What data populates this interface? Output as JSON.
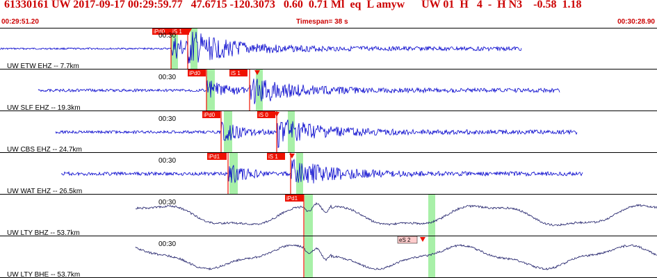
{
  "header": {
    "title": "61330161 UW 2017-09-17 00:29:59.77   47.6715 -120.3073   0.60  0.71 Ml  eq  L amyw      UW 01  H   4  -  H N3    -0.58  1.18",
    "start_time": "00:29:51.20",
    "timespan": "Timespan=  38 s",
    "end_time": "00:30:28.90"
  },
  "colors": {
    "header_text": "#cc0000",
    "trace_short_period": "#0000cc",
    "trace_broadband": "#1a1a66",
    "pick_flag": "#ee1100",
    "pick_flag_emergent": "#ffcccc",
    "pick_marker": "#ee1100",
    "window_band": "#a8f0a8",
    "separator": "#000000"
  },
  "traces": [
    {
      "id": "etw",
      "label": "UW ETW EHZ -- 7.7km",
      "tick_label": "00:30",
      "type": "short_period",
      "picks": [
        {
          "label": "iPd0",
          "style": "impulsive"
        },
        {
          "label": "iS 1",
          "style": "impulsive"
        }
      ]
    },
    {
      "id": "slf",
      "label": "UW SLF EHZ -- 19.3km",
      "tick_label": "00:30",
      "type": "short_period",
      "picks": [
        {
          "label": "iPd0",
          "style": "impulsive"
        },
        {
          "label": "iS 1",
          "style": "impulsive"
        }
      ]
    },
    {
      "id": "cbs",
      "label": "UW CBS EHZ -- 24.7km",
      "tick_label": "00:30",
      "type": "short_period",
      "picks": [
        {
          "label": "iPd0",
          "style": "impulsive"
        },
        {
          "label": "iS 0",
          "style": "impulsive"
        }
      ]
    },
    {
      "id": "wat",
      "label": "UW WAT EHZ -- 26.5km",
      "tick_label": "00:30",
      "type": "short_period",
      "picks": [
        {
          "label": "iPd1",
          "style": "impulsive"
        },
        {
          "label": "iS 1",
          "style": "impulsive"
        }
      ]
    },
    {
      "id": "lty-bhz",
      "label": "UW LTY BHZ -- 53.7km",
      "tick_label": "00:30",
      "type": "broadband",
      "picks": [
        {
          "label": "iPd1",
          "style": "impulsive"
        }
      ]
    },
    {
      "id": "lty-bhe",
      "label": "UW LTY BHE -- 53.7km",
      "tick_label": "00:30",
      "type": "broadband",
      "picks": [
        {
          "label": "eS 2",
          "style": "emergent"
        }
      ]
    }
  ]
}
